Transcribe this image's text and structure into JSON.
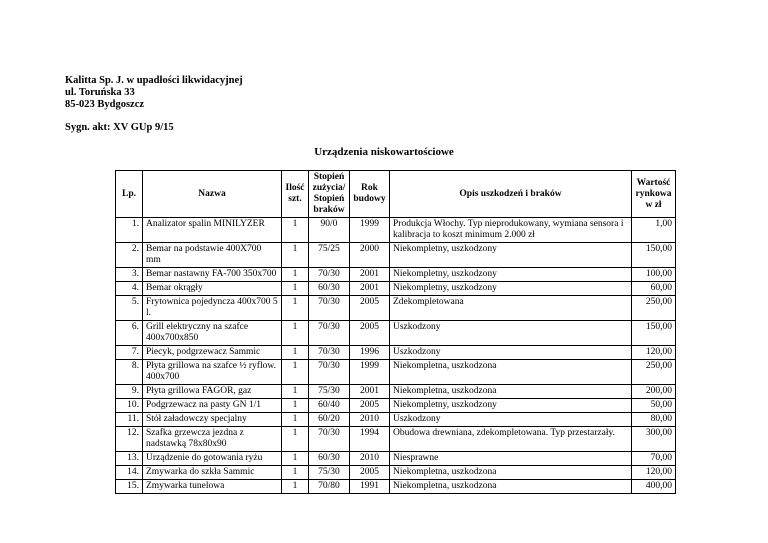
{
  "document": {
    "company_lines": [
      "Kalitta Sp. J. w upadłości likwidacyjnej",
      "ul. Toruńska 33",
      "85-023 Bydgoszcz"
    ],
    "case_ref": "Sygn. akt: XV GUp 9/15",
    "title": "Urządzenia niskowartościowe"
  },
  "table": {
    "columns": [
      {
        "key": "lp",
        "label": "Lp."
      },
      {
        "key": "nazwa",
        "label": "Nazwa"
      },
      {
        "key": "ilosc",
        "label": "Ilość\nszt."
      },
      {
        "key": "stopien",
        "label": "Stopień\nzużycia/\nStopień\nbraków"
      },
      {
        "key": "rok",
        "label": "Rok\nbudowy"
      },
      {
        "key": "opis",
        "label": "Opis uszkodzeń i braków"
      },
      {
        "key": "wartosc",
        "label": "Wartość\nrynkowa\nw zł"
      }
    ],
    "rows": [
      {
        "lp": "1.",
        "nazwa": "Analizator spalin MINILYZER",
        "ilosc": "1",
        "stopien": "90/0",
        "rok": "1999",
        "opis": "Produkcja Włochy. Typ nieprodukowany, wymiana sensora i kalibracja to koszt minimum 2.000 zł",
        "wartosc": "1,00"
      },
      {
        "lp": "2.",
        "nazwa": "Bemar na podstawie 400X700 mm",
        "ilosc": "1",
        "stopien": "75/25",
        "rok": "2000",
        "opis": "Niekompletny, uszkodzony",
        "wartosc": "150,00"
      },
      {
        "lp": "3.",
        "nazwa": "Bemar nastawny FA-700 350x700",
        "ilosc": "1",
        "stopien": "70/30",
        "rok": "2001",
        "opis": "Niekompletny, uszkodzony",
        "wartosc": "100,00"
      },
      {
        "lp": "4.",
        "nazwa": "Bemar okrągły",
        "ilosc": "1",
        "stopien": "60/30",
        "rok": "2001",
        "opis": "Niekompletny, uszkodzony",
        "wartosc": "60,00"
      },
      {
        "lp": "5.",
        "nazwa": "Frytownica pojedyncza 400x700 5 l.",
        "ilosc": "1",
        "stopien": "70/30",
        "rok": "2005",
        "opis": "Zdekompletowana",
        "wartosc": "250,00"
      },
      {
        "lp": "6.",
        "nazwa": "Grill elektryczny na szafce 400x700x850",
        "ilosc": "1",
        "stopien": "70/30",
        "rok": "2005",
        "opis": "Uszkodzony",
        "wartosc": "150,00"
      },
      {
        "lp": "7.",
        "nazwa": "Piecyk, podgrzewacz Sammic",
        "ilosc": "1",
        "stopien": "70/30",
        "rok": "1996",
        "opis": "Uszkodzony",
        "wartosc": "120,00"
      },
      {
        "lp": "8.",
        "nazwa": "Płyta grillowa na szafce ½ ryflow. 400x700",
        "ilosc": "1",
        "stopien": "70/30",
        "rok": "1999",
        "opis": "Niekompletna, uszkodzona",
        "wartosc": "250,00"
      },
      {
        "lp": "9.",
        "nazwa": "Płyta grillowa FAGOR, gaz",
        "ilosc": "1",
        "stopien": "75/30",
        "rok": "2001",
        "opis": "Niekompletna, uszkodzona",
        "wartosc": "200,00"
      },
      {
        "lp": "10.",
        "nazwa": "Podgrzewacz na pasty GN 1/1",
        "ilosc": "1",
        "stopien": "60/40",
        "rok": "2005",
        "opis": "Niekompletny, uszkodzony",
        "wartosc": "50,00"
      },
      {
        "lp": "11.",
        "nazwa": "Stół załadowczy specjalny",
        "ilosc": "1",
        "stopien": "60/20",
        "rok": "2010",
        "opis": "Uszkodzony",
        "wartosc": "80,00"
      },
      {
        "lp": "12.",
        "nazwa": "Szafka grzewcza jezdna z nadstawką 78x80x90",
        "ilosc": "1",
        "stopien": "70/30",
        "rok": "1994",
        "opis": "Obudowa drewniana, zdekompletowana. Typ przestarzały.",
        "wartosc": "300,00"
      },
      {
        "lp": "13.",
        "nazwa": "Urządzenie do gotowania ryżu",
        "ilosc": "1",
        "stopien": "60/30",
        "rok": "2010",
        "opis": "Niesprawne",
        "wartosc": "70,00"
      },
      {
        "lp": "14.",
        "nazwa": "Zmywarka do szkła Sammic",
        "ilosc": "1",
        "stopien": "75/30",
        "rok": "2005",
        "opis": "Niekompletna, uszkodzona",
        "wartosc": "120,00"
      },
      {
        "lp": "15.",
        "nazwa": "Zmywarka tunelowa",
        "ilosc": "1",
        "stopien": "70/80",
        "rok": "1991",
        "opis": "Niekompletna, uszkodzona",
        "wartosc": "400,00"
      }
    ]
  },
  "colors": {
    "text": "#000000",
    "background": "#ffffff",
    "table_border": "#000000"
  }
}
